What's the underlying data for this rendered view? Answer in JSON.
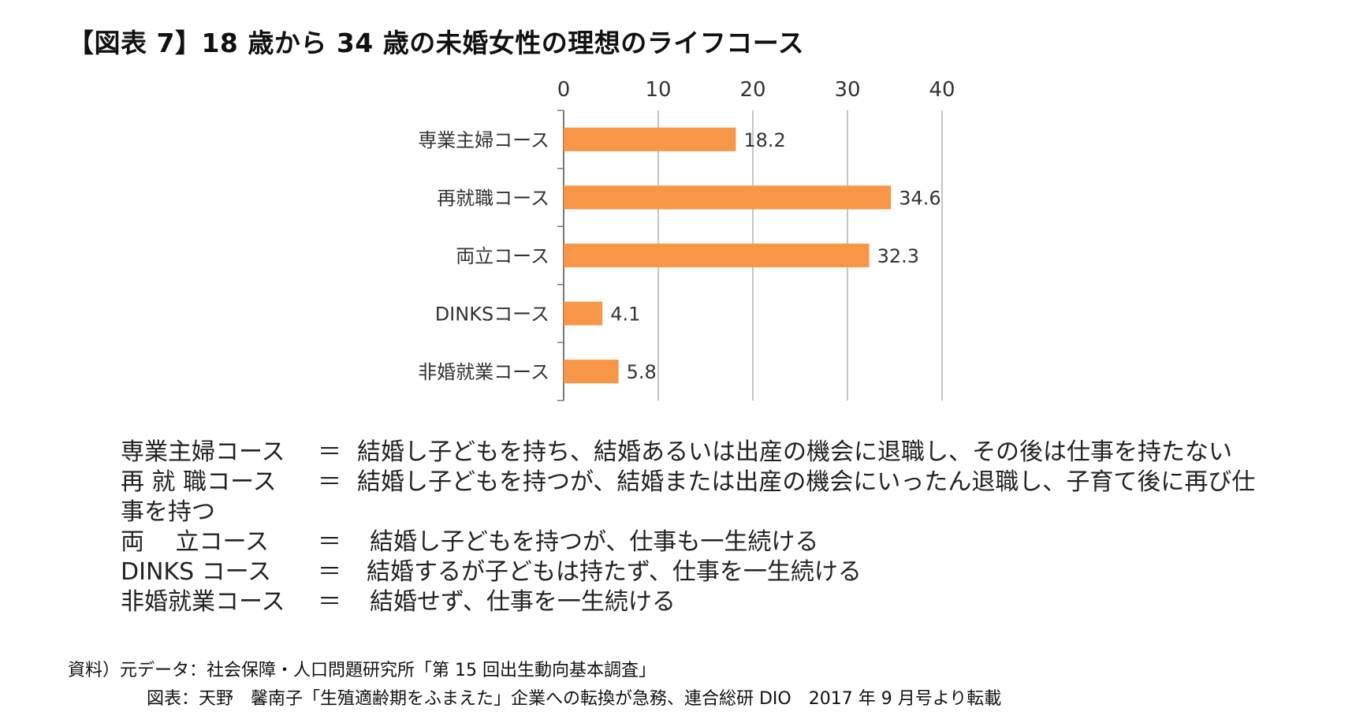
{
  "title": "【図表 7】18 歳から 34 歳の未婚女性の理想のライフコース",
  "chart_data": {
    "type": "bar",
    "orientation": "horizontal",
    "categories": [
      "専業主婦コース",
      "再就職コース",
      "両立コース",
      "DINKSコース",
      "非婚就業コース"
    ],
    "values": [
      18.2,
      34.6,
      32.3,
      4.1,
      5.8
    ],
    "value_labels": [
      "18.2",
      "34.6",
      "32.3",
      "4.1",
      "5.8"
    ],
    "xlim": [
      0,
      40
    ],
    "xticks": [
      0,
      10,
      20,
      30,
      40
    ],
    "axis_position": "top",
    "grid": true,
    "bar_color": "#f79646"
  },
  "definitions": [
    {
      "term": "専業主婦コース",
      "eq": "＝",
      "text": "結婚し子どもを持ち、結婚あるいは出産の機会に退職し、その後は仕事を持たない"
    },
    {
      "term": "再 就 職コース",
      "eq": "＝",
      "text": "結婚し子どもを持つが、結婚または出産の機会にいったん退職し、子育て後に再び仕"
    },
    {
      "term": "事を持つ",
      "eq": "",
      "text": ""
    },
    {
      "term": "両　 立コース",
      "eq": "＝",
      "text": "結婚し子どもを持つが、仕事も一生続ける"
    },
    {
      "term": "DINKS コース",
      "eq": "＝",
      "text": "結婚するが子どもは持たず、仕事を一生続ける"
    },
    {
      "term": "非婚就業コース",
      "eq": "＝",
      "text": "結婚せず、仕事を一生続ける"
    }
  ],
  "source": {
    "line1": "資料）元データ：社会保障・人口問題研究所「第 15 回出生動向基本調査」",
    "line2": "図表：天野　馨南子「生殖適齢期をふまえた」企業への転換が急務、連合総研 DIO　2017 年 9 月号より転載"
  }
}
